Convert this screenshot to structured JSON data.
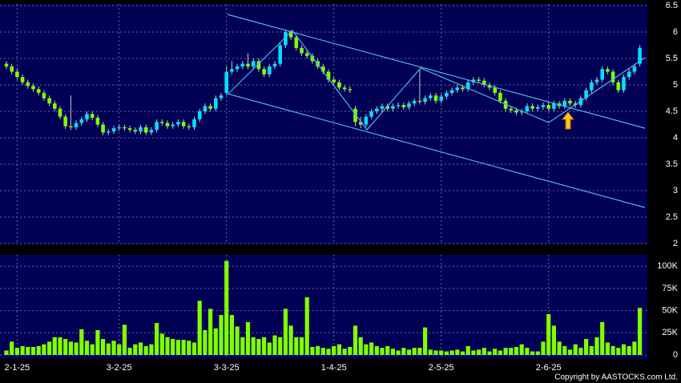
{
  "chart_data": {
    "type": "candlestick",
    "source": "Copyright by AASTOCKS.com Ltd.",
    "up_color": "#00e0ff",
    "down_color": "#80ff00",
    "volume_color": "#80ff00",
    "background": "#000055",
    "grid": true,
    "categories": [
      null,
      null,
      "2-1-25",
      null,
      null,
      null,
      null,
      null,
      null,
      null,
      null,
      null,
      null,
      null,
      null,
      null,
      null,
      null,
      null,
      null,
      null,
      "3-2-25",
      null,
      null,
      null,
      null,
      null,
      null,
      null,
      null,
      null,
      null,
      null,
      null,
      null,
      null,
      null,
      null,
      null,
      null,
      null,
      "3-3-25",
      null,
      null,
      null,
      null,
      null,
      null,
      null,
      null,
      null,
      null,
      null,
      null,
      null,
      null,
      null,
      null,
      null,
      null,
      null,
      "1-4-25",
      null,
      null,
      null,
      null,
      null,
      null,
      null,
      null,
      null,
      null,
      null,
      null,
      null,
      null,
      null,
      null,
      null,
      null,
      null,
      "2-5-25",
      null,
      null,
      null,
      null,
      null,
      null,
      null,
      null,
      null,
      null,
      null,
      null,
      null,
      null,
      null,
      null,
      null,
      null,
      null,
      "2-6-25",
      null,
      null,
      null,
      null,
      null,
      null,
      null,
      null,
      null,
      null,
      null,
      null,
      null,
      null,
      null,
      null,
      null
    ],
    "open": [
      5.4,
      5.35,
      5.25,
      5.15,
      5.05,
      4.98,
      4.92,
      4.85,
      4.75,
      4.65,
      4.55,
      4.4,
      4.22,
      4.2,
      4.28,
      4.35,
      4.45,
      4.38,
      4.25,
      4.1,
      4.12,
      4.18,
      4.2,
      4.18,
      4.15,
      4.12,
      4.2,
      4.1,
      4.15,
      4.3,
      4.28,
      4.22,
      4.25,
      4.3,
      4.22,
      4.2,
      4.35,
      4.5,
      4.6,
      4.55,
      4.75,
      4.85,
      5.25,
      5.3,
      5.35,
      5.4,
      5.35,
      5.45,
      5.3,
      5.2,
      5.35,
      5.4,
      5.75,
      6.0,
      5.9,
      5.7,
      5.6,
      5.55,
      5.45,
      5.35,
      5.25,
      5.1,
      5.05,
      4.95,
      4.92,
      4.55,
      4.3,
      4.25,
      4.4,
      4.5,
      4.55,
      4.6,
      4.55,
      4.6,
      4.62,
      4.58,
      4.65,
      4.7,
      4.68,
      4.75,
      4.8,
      4.7,
      4.78,
      4.85,
      4.9,
      4.95,
      4.92,
      5.05,
      5.1,
      5.08,
      5.0,
      4.95,
      4.85,
      4.7,
      4.55,
      4.52,
      4.48,
      4.5,
      4.6,
      4.55,
      4.58,
      4.62,
      4.55,
      4.65,
      4.6,
      4.7,
      4.65,
      4.62,
      4.75,
      4.9,
      5.05,
      5.1,
      5.3,
      5.25,
      5.05,
      4.9,
      5.15,
      5.25,
      5.4
    ],
    "high": [
      5.45,
      5.4,
      5.3,
      5.2,
      5.1,
      5.03,
      4.97,
      4.9,
      4.8,
      4.7,
      4.6,
      4.45,
      4.8,
      4.33,
      4.4,
      4.5,
      4.5,
      4.43,
      4.3,
      4.17,
      4.23,
      4.25,
      4.25,
      4.23,
      4.2,
      4.25,
      4.25,
      4.2,
      4.35,
      4.35,
      4.33,
      4.3,
      4.35,
      4.35,
      4.27,
      4.4,
      4.55,
      4.65,
      4.65,
      4.8,
      4.85,
      5.35,
      5.45,
      5.4,
      5.45,
      5.6,
      5.5,
      5.5,
      5.35,
      5.4,
      5.45,
      5.8,
      6.05,
      6.03,
      5.95,
      5.75,
      5.65,
      5.6,
      5.5,
      5.4,
      5.3,
      5.15,
      5.1,
      5.0,
      4.97,
      4.6,
      4.4,
      4.45,
      4.55,
      4.6,
      4.65,
      4.65,
      4.65,
      4.67,
      4.67,
      4.7,
      4.75,
      5.3,
      4.8,
      4.85,
      4.85,
      4.83,
      4.9,
      4.95,
      5.0,
      5.0,
      5.1,
      5.15,
      5.15,
      5.13,
      5.05,
      5.0,
      4.9,
      4.75,
      4.6,
      4.57,
      4.55,
      4.65,
      4.65,
      4.63,
      4.67,
      4.67,
      4.7,
      4.7,
      4.75,
      4.75,
      4.7,
      4.8,
      4.95,
      5.1,
      5.15,
      5.35,
      5.35,
      5.3,
      5.1,
      5.2,
      5.3,
      5.4,
      5.75
    ],
    "low": [
      5.3,
      5.2,
      5.1,
      5.0,
      4.93,
      4.87,
      4.8,
      4.7,
      4.6,
      4.5,
      4.35,
      4.17,
      4.15,
      4.15,
      4.23,
      4.3,
      4.33,
      4.2,
      4.05,
      4.05,
      4.07,
      4.13,
      4.13,
      4.1,
      4.07,
      4.07,
      4.05,
      4.05,
      4.1,
      4.23,
      4.17,
      4.17,
      4.2,
      4.17,
      4.15,
      4.15,
      4.3,
      4.45,
      4.5,
      4.5,
      4.7,
      4.8,
      5.2,
      5.25,
      5.3,
      5.3,
      5.3,
      5.25,
      5.15,
      5.15,
      5.3,
      5.35,
      5.7,
      5.85,
      5.65,
      5.55,
      5.5,
      5.4,
      5.3,
      5.2,
      5.05,
      5.0,
      4.9,
      4.87,
      4.85,
      4.22,
      4.18,
      4.2,
      4.35,
      4.45,
      4.5,
      4.5,
      4.5,
      4.55,
      4.53,
      4.53,
      4.6,
      4.63,
      4.63,
      4.7,
      4.65,
      4.65,
      4.73,
      4.8,
      4.85,
      4.87,
      4.87,
      5.0,
      5.03,
      4.95,
      4.9,
      4.8,
      4.65,
      4.5,
      4.47,
      4.43,
      4.43,
      4.45,
      4.5,
      4.5,
      4.53,
      4.5,
      4.5,
      4.55,
      4.55,
      4.6,
      4.57,
      4.57,
      4.7,
      4.85,
      5.0,
      5.05,
      5.2,
      5.0,
      4.85,
      4.85,
      5.1,
      5.2,
      5.35
    ],
    "close": [
      5.35,
      5.25,
      5.15,
      5.05,
      4.98,
      4.92,
      4.85,
      4.75,
      4.65,
      4.55,
      4.4,
      4.22,
      4.2,
      4.28,
      4.35,
      4.45,
      4.38,
      4.25,
      4.1,
      4.12,
      4.18,
      4.2,
      4.18,
      4.15,
      4.12,
      4.2,
      4.1,
      4.15,
      4.3,
      4.28,
      4.22,
      4.25,
      4.3,
      4.22,
      4.2,
      4.35,
      4.5,
      4.6,
      4.55,
      4.75,
      4.8,
      5.25,
      5.3,
      5.35,
      5.4,
      5.35,
      5.45,
      5.3,
      5.2,
      5.35,
      5.4,
      5.75,
      6.0,
      5.9,
      5.7,
      5.6,
      5.55,
      5.45,
      5.35,
      5.25,
      5.1,
      5.05,
      4.95,
      4.92,
      4.9,
      4.3,
      4.25,
      4.4,
      4.5,
      4.55,
      4.6,
      4.55,
      4.6,
      4.62,
      4.58,
      4.65,
      4.7,
      4.68,
      4.75,
      4.8,
      4.7,
      4.78,
      4.85,
      4.9,
      4.95,
      4.92,
      5.05,
      5.1,
      5.08,
      5.0,
      4.95,
      4.85,
      4.7,
      4.55,
      4.52,
      4.48,
      4.5,
      4.6,
      4.55,
      4.58,
      4.62,
      4.55,
      4.65,
      4.6,
      4.7,
      4.65,
      4.62,
      4.75,
      4.9,
      5.05,
      5.1,
      5.3,
      5.25,
      5.05,
      4.9,
      5.15,
      5.25,
      5.35,
      5.7
    ],
    "volume": [
      5000,
      15000,
      8000,
      10000,
      9000,
      9000,
      10000,
      12000,
      15000,
      20000,
      20000,
      18000,
      15000,
      14000,
      29000,
      16000,
      12000,
      28000,
      18000,
      13000,
      16000,
      12000,
      34000,
      8000,
      12000,
      14000,
      10000,
      12000,
      36000,
      24000,
      20000,
      18000,
      17000,
      17000,
      16000,
      14000,
      61000,
      28000,
      52000,
      30000,
      45000,
      106000,
      45000,
      32000,
      20000,
      37000,
      20000,
      18000,
      20000,
      14000,
      22000,
      20000,
      52000,
      33000,
      20000,
      20000,
      65000,
      9000,
      10000,
      8000,
      7000,
      10000,
      12000,
      7000,
      9000,
      33000,
      20000,
      12000,
      14000,
      10000,
      8000,
      10000,
      7000,
      5000,
      8000,
      6000,
      8000,
      8000,
      31000,
      6000,
      5000,
      5000,
      4000,
      5000,
      6000,
      4000,
      10000,
      5000,
      6000,
      8000,
      4000,
      7000,
      5000,
      8000,
      8000,
      9000,
      12000,
      8000,
      4000,
      4000,
      15000,
      46000,
      33000,
      15000,
      10000,
      6000,
      12000,
      8000,
      18000,
      10000,
      20000,
      37000,
      14000,
      10000,
      8000,
      12000,
      10000,
      15000,
      53000
    ],
    "ylim": [
      2,
      6.5
    ],
    "yticks": [
      2,
      2.5,
      3,
      3.5,
      4,
      4.5,
      5,
      5.5,
      6,
      6.5
    ],
    "volume_ylim": [
      0,
      111000
    ],
    "volume_yticks": [
      {
        "value": 0,
        "label": "0"
      },
      {
        "value": 25000,
        "label": "25K"
      },
      {
        "value": 50000,
        "label": "50K"
      },
      {
        "value": 75000,
        "label": "75K"
      },
      {
        "value": 100000,
        "label": "100K"
      }
    ]
  }
}
